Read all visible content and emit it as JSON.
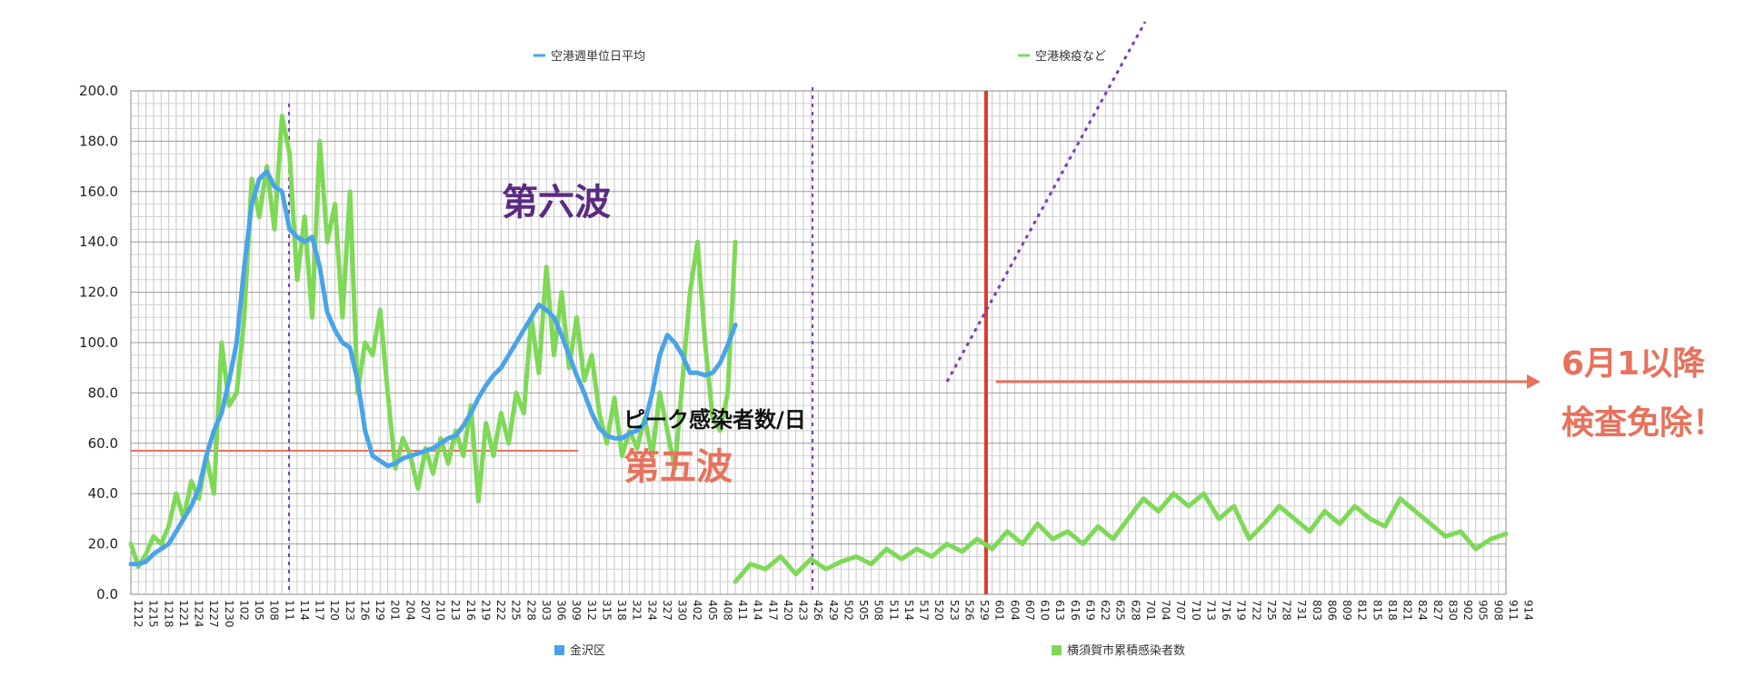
{
  "chart_data": {
    "type": "line",
    "ylim": [
      0,
      200
    ],
    "y_ticks": [
      "0.0",
      "20.0",
      "40.0",
      "60.0",
      "80.0",
      "100.0",
      "120.0",
      "140.0",
      "160.0",
      "180.0",
      "200.0"
    ],
    "x_tick_labels": [
      "1212",
      "1215",
      "1218",
      "1221",
      "1224",
      "1227",
      "1230",
      "102",
      "105",
      "108",
      "111",
      "114",
      "117",
      "120",
      "123",
      "126",
      "129",
      "201",
      "204",
      "207",
      "210",
      "213",
      "216",
      "219",
      "222",
      "225",
      "228",
      "303",
      "306",
      "309",
      "312",
      "315",
      "318",
      "321",
      "324",
      "327",
      "330",
      "402",
      "405",
      "408",
      "411",
      "414",
      "417",
      "420",
      "423",
      "426",
      "429",
      "502",
      "505",
      "508",
      "511",
      "514",
      "517",
      "520",
      "523",
      "526",
      "529",
      "601",
      "604",
      "607",
      "610",
      "613",
      "616",
      "619",
      "622",
      "625",
      "628",
      "701",
      "704",
      "707",
      "710",
      "713",
      "716",
      "719",
      "722",
      "725",
      "728",
      "731",
      "803",
      "806",
      "809",
      "812",
      "815",
      "818",
      "821",
      "824",
      "827",
      "830",
      "902",
      "905",
      "908",
      "911",
      "914"
    ],
    "grid": true,
    "series": [
      {
        "name": "空港週単位日平均",
        "color": "#4aa3e8",
        "points": [
          [
            0,
            12
          ],
          [
            1,
            12
          ],
          [
            2,
            13
          ],
          [
            3,
            16
          ],
          [
            4,
            18
          ],
          [
            5,
            20
          ],
          [
            6,
            25
          ],
          [
            7,
            30
          ],
          [
            8,
            35
          ],
          [
            9,
            42
          ],
          [
            10,
            55
          ],
          [
            11,
            65
          ],
          [
            12,
            72
          ],
          [
            13,
            85
          ],
          [
            14,
            100
          ],
          [
            15,
            130
          ],
          [
            16,
            155
          ],
          [
            17,
            165
          ],
          [
            18,
            168
          ],
          [
            19,
            162
          ],
          [
            20,
            160
          ],
          [
            21,
            145
          ],
          [
            22,
            142
          ],
          [
            23,
            140
          ],
          [
            24,
            142
          ],
          [
            25,
            130
          ],
          [
            26,
            112
          ],
          [
            27,
            105
          ],
          [
            28,
            100
          ],
          [
            29,
            98
          ],
          [
            30,
            85
          ],
          [
            31,
            65
          ],
          [
            32,
            55
          ],
          [
            33,
            53
          ],
          [
            34,
            51
          ],
          [
            35,
            52
          ],
          [
            36,
            54
          ],
          [
            37,
            55
          ],
          [
            38,
            56
          ],
          [
            39,
            57
          ],
          [
            40,
            58
          ],
          [
            41,
            60
          ],
          [
            42,
            62
          ],
          [
            43,
            63
          ],
          [
            44,
            67
          ],
          [
            45,
            72
          ],
          [
            46,
            78
          ],
          [
            47,
            83
          ],
          [
            48,
            87
          ],
          [
            49,
            90
          ],
          [
            50,
            95
          ],
          [
            51,
            100
          ],
          [
            52,
            105
          ],
          [
            53,
            110
          ],
          [
            54,
            115
          ],
          [
            55,
            113
          ],
          [
            56,
            110
          ],
          [
            57,
            103
          ],
          [
            58,
            95
          ],
          [
            59,
            87
          ],
          [
            60,
            80
          ],
          [
            61,
            72
          ],
          [
            62,
            66
          ],
          [
            63,
            63
          ],
          [
            64,
            62
          ],
          [
            65,
            62
          ],
          [
            66,
            64
          ],
          [
            67,
            65
          ],
          [
            68,
            68
          ],
          [
            69,
            80
          ],
          [
            70,
            95
          ],
          [
            71,
            103
          ],
          [
            72,
            100
          ],
          [
            73,
            95
          ],
          [
            74,
            88
          ],
          [
            75,
            88
          ],
          [
            76,
            87
          ],
          [
            77,
            88
          ],
          [
            78,
            92
          ],
          [
            79,
            99
          ],
          [
            80,
            107
          ]
        ]
      },
      {
        "name": "空港検疫など",
        "color": "#7ed957",
        "points": [
          [
            0,
            20
          ],
          [
            1,
            11
          ],
          [
            2,
            16
          ],
          [
            3,
            23
          ],
          [
            4,
            20
          ],
          [
            5,
            27
          ],
          [
            6,
            40
          ],
          [
            7,
            30
          ],
          [
            8,
            45
          ],
          [
            9,
            38
          ],
          [
            10,
            55
          ],
          [
            11,
            40
          ],
          [
            12,
            100
          ],
          [
            13,
            75
          ],
          [
            14,
            80
          ],
          [
            15,
            110
          ],
          [
            16,
            165
          ],
          [
            17,
            150
          ],
          [
            18,
            170
          ],
          [
            19,
            145
          ],
          [
            20,
            190
          ],
          [
            21,
            175
          ],
          [
            22,
            125
          ],
          [
            23,
            150
          ],
          [
            24,
            110
          ],
          [
            25,
            180
          ],
          [
            26,
            140
          ],
          [
            27,
            155
          ],
          [
            28,
            110
          ],
          [
            29,
            160
          ],
          [
            30,
            80
          ],
          [
            31,
            100
          ],
          [
            32,
            95
          ],
          [
            33,
            113
          ],
          [
            34,
            80
          ],
          [
            35,
            50
          ],
          [
            36,
            62
          ],
          [
            37,
            55
          ],
          [
            38,
            42
          ],
          [
            39,
            58
          ],
          [
            40,
            48
          ],
          [
            41,
            62
          ],
          [
            42,
            52
          ],
          [
            43,
            65
          ],
          [
            44,
            55
          ],
          [
            45,
            75
          ],
          [
            46,
            37
          ],
          [
            47,
            68
          ],
          [
            48,
            55
          ],
          [
            49,
            72
          ],
          [
            50,
            60
          ],
          [
            51,
            80
          ],
          [
            52,
            72
          ],
          [
            53,
            110
          ],
          [
            54,
            88
          ],
          [
            55,
            130
          ],
          [
            56,
            95
          ],
          [
            57,
            120
          ],
          [
            58,
            90
          ],
          [
            59,
            110
          ],
          [
            60,
            85
          ],
          [
            61,
            95
          ],
          [
            62,
            72
          ],
          [
            63,
            60
          ],
          [
            64,
            78
          ],
          [
            65,
            55
          ],
          [
            66,
            65
          ],
          [
            67,
            58
          ],
          [
            68,
            70
          ],
          [
            69,
            55
          ],
          [
            70,
            80
          ],
          [
            71,
            65
          ],
          [
            72,
            50
          ],
          [
            73,
            85
          ],
          [
            74,
            120
          ],
          [
            75,
            140
          ],
          [
            76,
            100
          ],
          [
            77,
            70
          ],
          [
            78,
            65
          ],
          [
            79,
            80
          ],
          [
            80,
            140
          ]
        ],
        "post_0601_points": [
          [
            80,
            5
          ],
          [
            82,
            12
          ],
          [
            84,
            10
          ],
          [
            86,
            15
          ],
          [
            88,
            8
          ],
          [
            90,
            14
          ],
          [
            92,
            10
          ],
          [
            94,
            13
          ],
          [
            96,
            15
          ],
          [
            98,
            12
          ],
          [
            100,
            18
          ],
          [
            102,
            14
          ],
          [
            104,
            18
          ],
          [
            106,
            15
          ],
          [
            108,
            20
          ],
          [
            110,
            17
          ],
          [
            112,
            22
          ],
          [
            114,
            18
          ],
          [
            116,
            25
          ],
          [
            118,
            20
          ],
          [
            120,
            28
          ],
          [
            122,
            22
          ],
          [
            124,
            25
          ],
          [
            126,
            20
          ],
          [
            128,
            27
          ],
          [
            130,
            22
          ],
          [
            132,
            30
          ],
          [
            134,
            38
          ],
          [
            136,
            33
          ],
          [
            138,
            40
          ],
          [
            140,
            35
          ],
          [
            142,
            40
          ],
          [
            144,
            30
          ],
          [
            146,
            35
          ],
          [
            148,
            22
          ],
          [
            150,
            28
          ],
          [
            152,
            35
          ],
          [
            154,
            30
          ],
          [
            156,
            25
          ],
          [
            158,
            33
          ],
          [
            160,
            28
          ],
          [
            162,
            35
          ],
          [
            164,
            30
          ],
          [
            166,
            27
          ],
          [
            168,
            38
          ],
          [
            170,
            33
          ],
          [
            172,
            28
          ],
          [
            174,
            23
          ],
          [
            176,
            25
          ],
          [
            178,
            18
          ],
          [
            180,
            22
          ],
          [
            182,
            24
          ]
        ]
      }
    ],
    "legend": {
      "top": [
        "空港週単位日平均",
        "空港検疫など"
      ],
      "bottom": [
        "金沢区",
        "横須賀市累積感染者数"
      ]
    },
    "annotations": {
      "sixth_wave": "第六波",
      "fifth_wave": "第五波",
      "peak_label": "ピーク感染者数/日",
      "side_line1": "6月1以降",
      "side_line2": "検査免除！"
    },
    "reference_y": 57,
    "colors": {
      "red": "#e03c2a",
      "orange": "#e8725c",
      "purple": "#7a3fb5",
      "blue": "#4aa3e8",
      "green": "#7ed957"
    }
  }
}
